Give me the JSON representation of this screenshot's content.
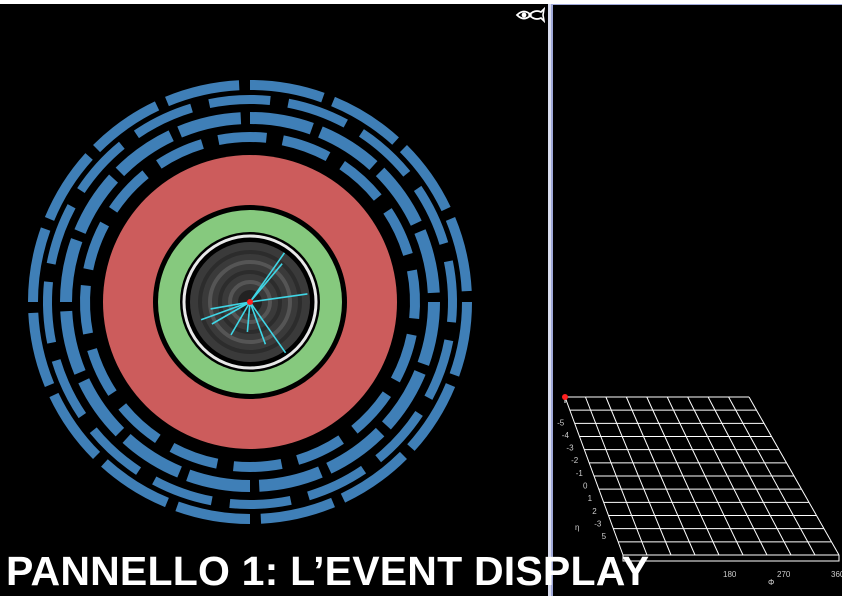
{
  "caption": "PANNELLO 1: L’EVENT DISPLAY",
  "icons": {
    "view_toggle": "eye-fish-icon"
  },
  "colors": {
    "background": "#000000",
    "muon_chambers": "#3f7fb7",
    "hadron_calorimeter": "#cc5c5c",
    "em_calorimeter": "#86c97e",
    "tracker": "#3a3a3a",
    "tracks": "#3fd6e6",
    "vertex": "#ff2020",
    "grid": "#ffffff",
    "pane_border": "#9fa8d8"
  },
  "lego_plot": {
    "eta_label": "η",
    "phi_label": "Φ",
    "eta_ticks": [
      "-5",
      "-4",
      "-3",
      "-2",
      "-1",
      "0",
      "1",
      "2",
      "-3",
      "5"
    ],
    "phi_ticks": [
      "180",
      "270",
      "360"
    ]
  }
}
